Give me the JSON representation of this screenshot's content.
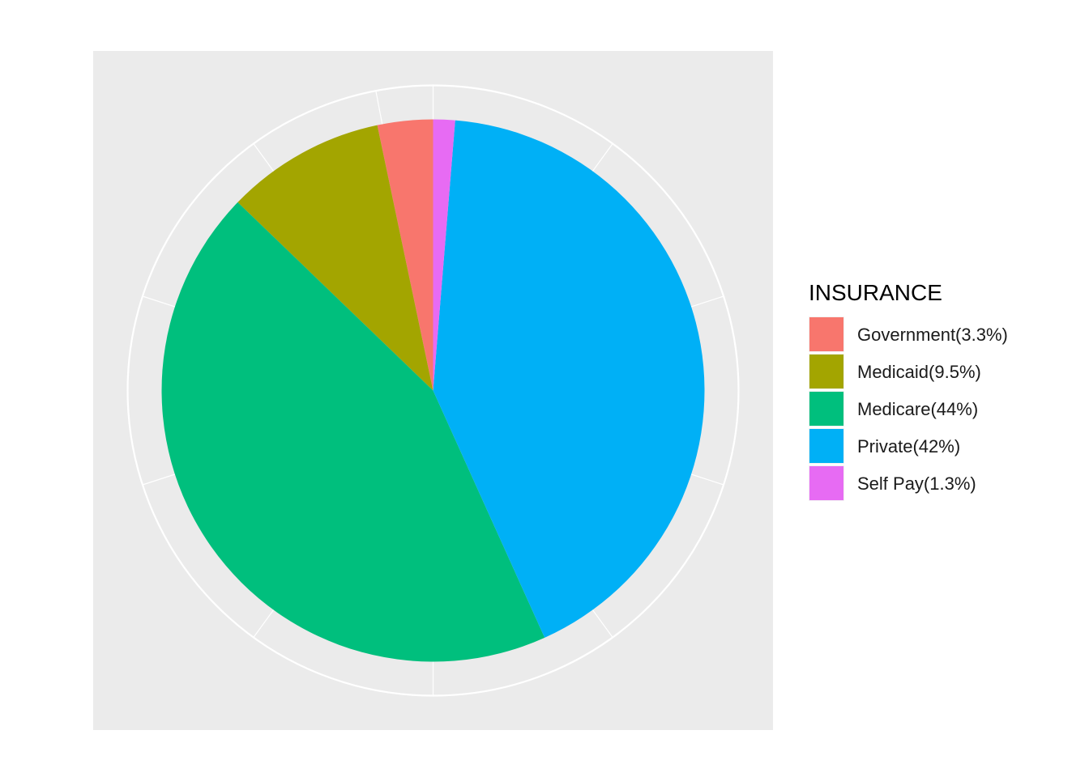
{
  "chart_data": {
    "type": "pie",
    "legend": {
      "title": "INSURANCE",
      "position": "right"
    },
    "slices": [
      {
        "label": "Government(3.3%)",
        "value": 3.3,
        "color": "#F8766D"
      },
      {
        "label": "Medicaid(9.5%)",
        "value": 9.5,
        "color": "#A3A500"
      },
      {
        "label": "Medicare(44%)",
        "value": 44,
        "color": "#00BF7D"
      },
      {
        "label": "Private(42%)",
        "value": 42,
        "color": "#00B0F6"
      },
      {
        "label": "Self Pay(1.3%)",
        "value": 1.3,
        "color": "#E76BF3"
      }
    ],
    "panel_background": "#EBEBEB",
    "grid_color": "#FFFFFF",
    "grid": true
  }
}
